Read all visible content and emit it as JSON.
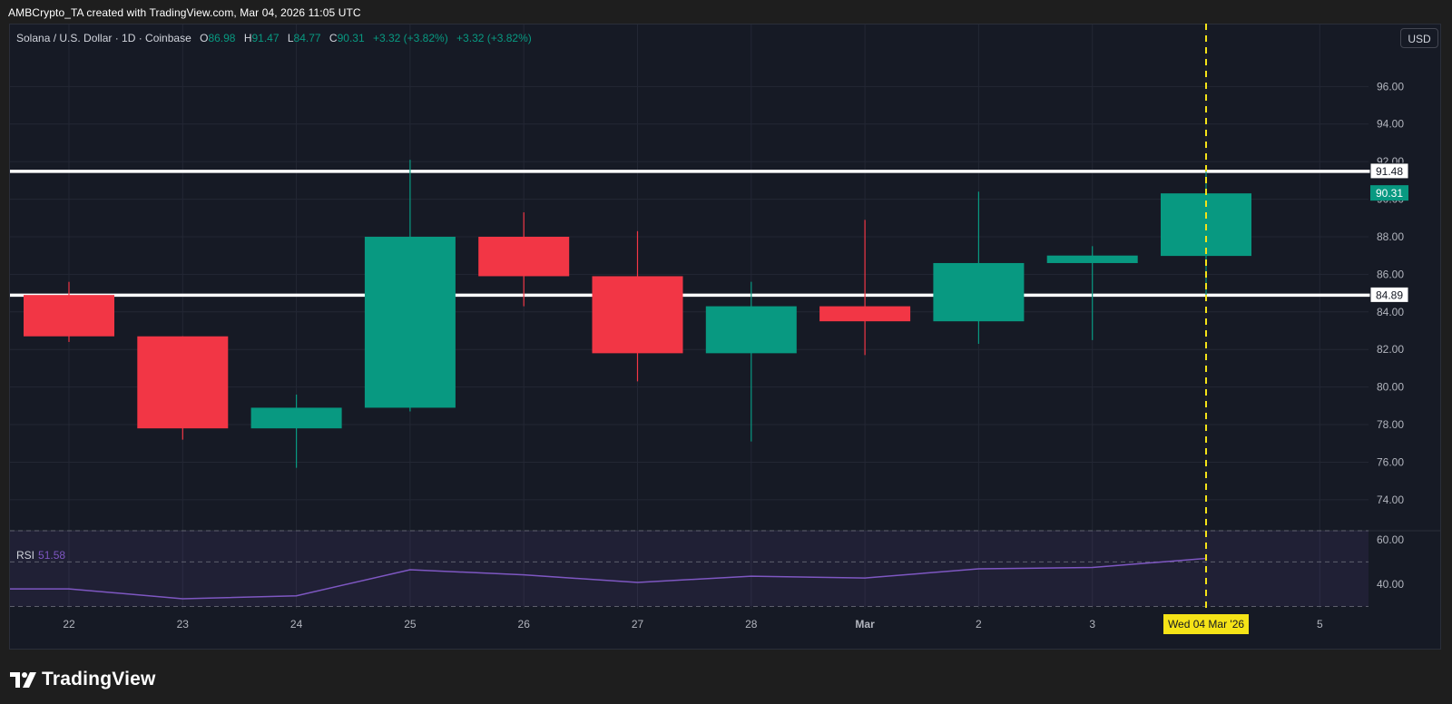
{
  "caption": "AMBCrypto_TA created with TradingView.com, Mar 04, 2026 11:05 UTC",
  "legend": {
    "symbol": "Solana / U.S. Dollar · 1D · Coinbase",
    "o_label": "O",
    "o_value": "86.98",
    "h_label": "H",
    "h_value": "91.47",
    "l_label": "L",
    "l_value": "84.77",
    "c_label": "C",
    "c_value": "90.31",
    "change1": "+3.32 (+3.82%)",
    "change2": "+3.32 (+3.82%)"
  },
  "currency_button": "USD",
  "brand": {
    "name": "TradingView",
    "icon": "tradingview-logo-icon"
  },
  "colors": {
    "up": "#089981",
    "down": "#f23645",
    "pane_bg": "#161a25",
    "grid": "#232734",
    "level_line": "#ffffff",
    "cursor": "#f5e317",
    "rsi": "#7e57c2"
  },
  "chart_data": {
    "type": "candlestick",
    "x_tick_labels": [
      "22",
      "23",
      "24",
      "25",
      "26",
      "27",
      "28",
      "Mar",
      "2",
      "3",
      "Wed 04 Mar '26",
      "5"
    ],
    "y_ticks": [
      "74.00",
      "76.00",
      "78.00",
      "80.00",
      "82.00",
      "84.00",
      "86.00",
      "88.00",
      "90.00",
      "92.00",
      "94.00",
      "96.00"
    ],
    "ylim": [
      72.4,
      99.3
    ],
    "candles": [
      {
        "date": "Feb 22",
        "open": 84.9,
        "high": 85.6,
        "low": 82.4,
        "close": 82.7
      },
      {
        "date": "Feb 23",
        "open": 82.7,
        "high": 82.7,
        "low": 77.2,
        "close": 77.8
      },
      {
        "date": "Feb 24",
        "open": 77.8,
        "high": 79.6,
        "low": 75.7,
        "close": 78.9
      },
      {
        "date": "Feb 25",
        "open": 78.9,
        "high": 92.1,
        "low": 78.7,
        "close": 88.0
      },
      {
        "date": "Feb 26",
        "open": 88.0,
        "high": 89.3,
        "low": 84.3,
        "close": 85.9
      },
      {
        "date": "Feb 27",
        "open": 85.9,
        "high": 88.3,
        "low": 80.3,
        "close": 81.8
      },
      {
        "date": "Feb 28",
        "open": 81.8,
        "high": 85.6,
        "low": 77.1,
        "close": 84.3
      },
      {
        "date": "Mar 1",
        "open": 84.3,
        "high": 88.9,
        "low": 81.7,
        "close": 83.5
      },
      {
        "date": "Mar 2",
        "open": 83.5,
        "high": 90.4,
        "low": 82.3,
        "close": 86.6
      },
      {
        "date": "Mar 3",
        "open": 86.6,
        "high": 87.5,
        "low": 82.5,
        "close": 87.0
      },
      {
        "date": "Mar 4",
        "open": 86.98,
        "high": 91.47,
        "low": 84.77,
        "close": 90.31
      }
    ],
    "horizontal_levels": [
      {
        "value": 91.48,
        "label": "91.48"
      },
      {
        "value": 84.89,
        "label": "84.89"
      }
    ],
    "last_price": {
      "value": 90.31,
      "label": "90.31"
    },
    "cursor_date_index": 10,
    "rsi": {
      "label": "RSI",
      "value_label": "51.58",
      "ylim": [
        29,
        64
      ],
      "y_ticks": [
        "40.00",
        "60.00"
      ],
      "band": [
        30,
        70
      ],
      "mid": 50,
      "values": [
        37.9,
        33.5,
        34.8,
        46.5,
        44.2,
        40.8,
        43.6,
        42.8,
        46.9,
        47.5,
        51.58
      ]
    },
    "grid": true
  }
}
